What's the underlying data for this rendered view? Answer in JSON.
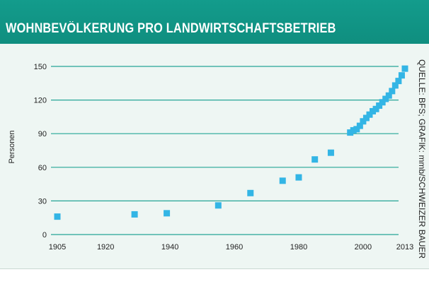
{
  "header": {
    "title": "WOHNBEVÖLKERUNG PRO LANDWIRTSCHAFTSBETRIEB"
  },
  "colors": {
    "header_bg": "#139c8c",
    "gridline": "#25a596",
    "marker": "#33b5e5",
    "background": "#eef6f3"
  },
  "source_note": "QUELLE: BFS; GRAFIK: mmb/SCHWEIZER BAUER",
  "chart_data": {
    "type": "scatter",
    "title": "WOHNBEVÖLKERUNG PRO LANDWIRTSCHAFTSBETRIEB",
    "xlabel": "",
    "ylabel": "Personen",
    "xlim": [
      1905,
      2013
    ],
    "ylim": [
      0,
      150
    ],
    "x_ticks": [
      1905,
      1920,
      1940,
      1960,
      1980,
      2000,
      2013
    ],
    "y_ticks": [
      0,
      30,
      60,
      90,
      120,
      150
    ],
    "grid": true,
    "legend": "none",
    "points": [
      {
        "x": 1905,
        "y": 16
      },
      {
        "x": 1929,
        "y": 18
      },
      {
        "x": 1939,
        "y": 19
      },
      {
        "x": 1955,
        "y": 26
      },
      {
        "x": 1965,
        "y": 37
      },
      {
        "x": 1975,
        "y": 48
      },
      {
        "x": 1980,
        "y": 51
      },
      {
        "x": 1985,
        "y": 67
      },
      {
        "x": 1990,
        "y": 73
      },
      {
        "x": 1996,
        "y": 91
      },
      {
        "x": 1997,
        "y": 93
      },
      {
        "x": 1998,
        "y": 94
      },
      {
        "x": 1999,
        "y": 97
      },
      {
        "x": 2000,
        "y": 101
      },
      {
        "x": 2001,
        "y": 104
      },
      {
        "x": 2002,
        "y": 107
      },
      {
        "x": 2003,
        "y": 110
      },
      {
        "x": 2004,
        "y": 112
      },
      {
        "x": 2005,
        "y": 115
      },
      {
        "x": 2006,
        "y": 118
      },
      {
        "x": 2007,
        "y": 121
      },
      {
        "x": 2008,
        "y": 124
      },
      {
        "x": 2009,
        "y": 128
      },
      {
        "x": 2010,
        "y": 133
      },
      {
        "x": 2011,
        "y": 137
      },
      {
        "x": 2012,
        "y": 142
      },
      {
        "x": 2013,
        "y": 148
      }
    ]
  }
}
